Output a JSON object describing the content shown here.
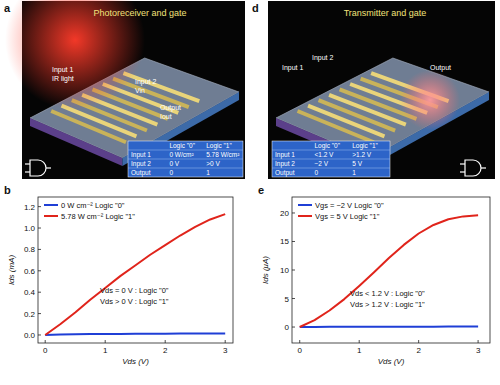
{
  "panels": [
    {
      "letter": "a",
      "title": "Photoreceiver and gate",
      "labels": [
        "Input 1",
        "IR light",
        "Input 2",
        "Vin",
        "Output",
        "Iout"
      ],
      "table": {
        "header": [
          "Logic \"0\"",
          "Logic \"1\""
        ],
        "rows": [
          {
            "label": "Input 1",
            "cells": [
              "0 W/cm²",
              "5.78 W/cm²"
            ]
          },
          {
            "label": "Input 2",
            "cells": [
              "0 V",
              ">0 V"
            ]
          },
          {
            "label": "Output",
            "cells": [
              "0",
              "1"
            ]
          }
        ]
      }
    },
    {
      "letter": "d",
      "title": "Transmitter and gate",
      "labels": [
        "Input 1",
        "Input 2",
        "Output"
      ],
      "table": {
        "header": [
          "Logic \"0\"",
          "Logic \"1\""
        ],
        "rows": [
          {
            "label": "Input 1",
            "cells": [
              "<1.2 V",
              ">1.2 V"
            ]
          },
          {
            "label": "Input 2",
            "cells": [
              "−2 V",
              "5 V"
            ]
          },
          {
            "label": "Output",
            "cells": [
              "0",
              "1"
            ]
          }
        ]
      }
    }
  ],
  "chart_data": [
    {
      "type": "line",
      "panel_label": "b",
      "x_label": "Vds (V)",
      "y_label": "Ids (mA)",
      "x": [
        0,
        0.25,
        0.5,
        0.75,
        1,
        1.25,
        1.5,
        1.75,
        2,
        2.25,
        2.5,
        2.75,
        3
      ],
      "series": [
        {
          "name": "0 W cm⁻² Logic \"0\"",
          "color": "#1f3fd6",
          "values": [
            0,
            0.004,
            0.006,
            0.008,
            0.009,
            0.01,
            0.011,
            0.012,
            0.012,
            0.013,
            0.013,
            0.014,
            0.014
          ]
        },
        {
          "name": "5.78 W cm⁻² Logic \"1\"",
          "color": "#e0241b",
          "values": [
            0,
            0.1,
            0.21,
            0.33,
            0.44,
            0.55,
            0.65,
            0.75,
            0.84,
            0.93,
            1.01,
            1.08,
            1.13
          ]
        }
      ],
      "xlim": [
        -0.12,
        3.13
      ],
      "ylim": [
        -0.075,
        1.29
      ],
      "xticks": [
        0,
        1,
        2,
        3
      ],
      "yticks": [
        {
          "value": 0,
          "label": "0.0"
        },
        {
          "value": 0.2,
          "label": "0.2"
        },
        {
          "value": 0.4,
          "label": "0.4"
        },
        {
          "value": 0.6,
          "label": "0.6"
        },
        {
          "value": 0.8,
          "label": "0.8"
        },
        {
          "value": 1.0,
          "label": "1.0"
        },
        {
          "value": 1.2,
          "label": "1.2"
        }
      ],
      "annotations": [
        "Vds = 0 V : Logic \"0\"",
        "Vds > 0 V : Logic \"1\""
      ],
      "legend": "upper left",
      "grid": false
    },
    {
      "type": "line",
      "panel_label": "e",
      "x_label": "Vds (V)",
      "y_label": "Ids (μA)",
      "x": [
        0,
        0.25,
        0.5,
        0.75,
        1,
        1.25,
        1.5,
        1.75,
        2,
        2.25,
        2.5,
        2.75,
        3
      ],
      "series": [
        {
          "name": "Vgs = −2 V Logic \"0\"",
          "color": "#1f3fd6",
          "values": [
            0,
            0.02,
            0.03,
            0.04,
            0.05,
            0.05,
            0.06,
            0.06,
            0.07,
            0.07,
            0.08,
            0.08,
            0.08
          ]
        },
        {
          "name": "Vgs = 5 V Logic \"1\"",
          "color": "#e0241b",
          "values": [
            0,
            1.2,
            2.9,
            4.9,
            7.2,
            9.6,
            12.1,
            14.4,
            16.4,
            17.9,
            18.9,
            19.4,
            19.6
          ]
        }
      ],
      "xlim": [
        -0.13,
        3.2
      ],
      "ylim": [
        -2.8,
        22.8
      ],
      "xticks": [
        0,
        1,
        2,
        3
      ],
      "yticks": [
        0,
        5,
        10,
        15,
        20
      ],
      "annotations": [
        "Vds < 1.2 V : Logic \"0\"",
        "Vds > 1.2 V : Logic \"1\""
      ],
      "legend": "upper left",
      "grid": false
    }
  ]
}
